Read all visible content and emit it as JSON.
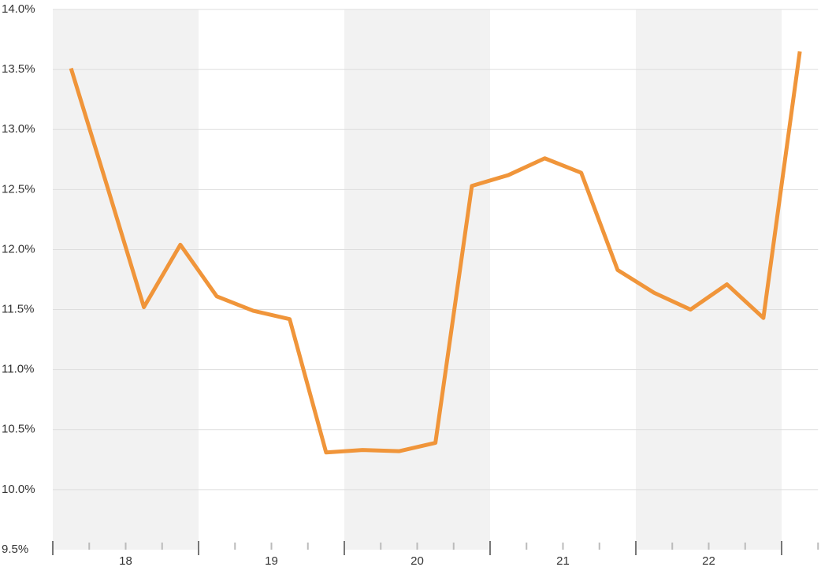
{
  "chart_data": {
    "type": "line",
    "categories": [
      null,
      null,
      null,
      null,
      null,
      null,
      null,
      null,
      null,
      null,
      null,
      null,
      null,
      null,
      null,
      null,
      null,
      null,
      null,
      null,
      null
    ],
    "group_labels": [
      "18",
      "19",
      "20",
      "21",
      "22"
    ],
    "group_size": 4,
    "series": [
      {
        "color": "#f0953a",
        "values": [
          13.51,
          12.52,
          11.52,
          12.04,
          11.61,
          11.49,
          11.42,
          10.31,
          10.33,
          10.32,
          10.39,
          12.53,
          12.62,
          12.76,
          12.64,
          11.83,
          11.64,
          11.5,
          11.71,
          11.43,
          13.65
        ]
      }
    ],
    "ylim": [
      9.5,
      14.0
    ],
    "yticks": [
      {
        "value": 9.5,
        "label": "9.5%"
      },
      {
        "value": 10.0,
        "label": "10.0%"
      },
      {
        "value": 10.5,
        "label": "10.5%"
      },
      {
        "value": 11.0,
        "label": "11.0%"
      },
      {
        "value": 11.5,
        "label": "11.5%"
      },
      {
        "value": 12.0,
        "label": "12.0%"
      },
      {
        "value": 12.5,
        "label": "12.5%"
      },
      {
        "value": 13.0,
        "label": "13.0%"
      },
      {
        "value": 13.5,
        "label": "13.5%"
      },
      {
        "value": 14.0,
        "label": "14.0%"
      }
    ],
    "grid": true,
    "alternate_bands": true
  }
}
